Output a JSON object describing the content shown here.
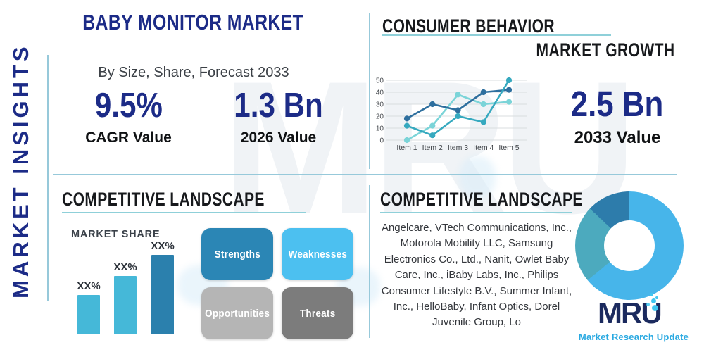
{
  "page": {
    "side_label": "MARKET INSIGHTS",
    "title": "BABY MONITOR MARKET",
    "subtitle": "By Size, Share, Forecast 2033",
    "watermark": "MRU"
  },
  "stats": {
    "cagr": {
      "value": "9.5%",
      "label": "CAGR Value"
    },
    "base_year": {
      "value": "1.3 Bn",
      "label": "2026 Value"
    },
    "forecast_year": {
      "value": "2.5 Bn",
      "label": "2033 Value"
    }
  },
  "sections": {
    "consumer_behavior": "CONSUMER BEHAVIOR",
    "market_growth": "MARKET GROWTH",
    "competitive_left": "COMPETITIVE LANDSCAPE",
    "competitive_right": "COMPETITIVE LANDSCAPE",
    "market_share": "MARKET SHARE"
  },
  "swot": [
    {
      "label": "Strengths",
      "color": "#2b86b5"
    },
    {
      "label": "Weaknesses",
      "color": "#4cc0f0"
    },
    {
      "label": "Opportunities",
      "color": "#b5b5b5"
    },
    {
      "label": "Threats",
      "color": "#7c7c7c"
    }
  ],
  "companies": "Angelcare, VTech Communications, Inc., Motorola Mobility LLC, Samsung Electronics Co., Ltd., Nanit, Owlet Baby Care, Inc., iBaby Labs, Inc., Philips Consumer Lifestyle B.V., Summer Infant, Inc., HelloBaby, Infant Optics, Dorel Juvenile Group, Lo",
  "logo": {
    "name": "MRU",
    "tagline": "Market Research Update"
  },
  "colors": {
    "navy": "#1c2b87",
    "heading": "#17191c",
    "divider": "#97c9da",
    "underline": "#8fd0d9",
    "logo_navy": "#1b2a5e",
    "logo_cyan": "#29a9e1"
  },
  "chart_data": [
    {
      "type": "line",
      "section": "CONSUMER BEHAVIOR",
      "categories": [
        "Item 1",
        "Item 2",
        "Item 3",
        "Item 4",
        "Item 5"
      ],
      "series": [
        {
          "name": "series-light-cyan",
          "color": "#7bd4d8",
          "values": [
            0,
            12,
            38,
            30,
            32
          ]
        },
        {
          "name": "series-dark-blue",
          "color": "#2e6f9e",
          "values": [
            18,
            30,
            25,
            40,
            42
          ]
        },
        {
          "name": "series-teal",
          "color": "#36a9bf",
          "values": [
            12,
            4,
            20,
            15,
            50
          ]
        }
      ],
      "yticks": [
        0,
        10,
        20,
        30,
        40,
        50
      ],
      "ylim": [
        0,
        50
      ],
      "grid": true,
      "legend": "none"
    },
    {
      "type": "bar",
      "title": "MARKET SHARE",
      "categories": [
        "XX%",
        "XX%",
        "XX%"
      ],
      "values": [
        45,
        66,
        90
      ],
      "ylim": [
        0,
        100
      ],
      "value_labels": [
        "XX%",
        "XX%",
        "XX%"
      ],
      "bar_colors": [
        "#45b8d8",
        "#45b8d8",
        "#2b80ad"
      ],
      "note": "bar heights estimated from pixels; values shown only as XX% placeholders"
    },
    {
      "type": "pie",
      "donut": true,
      "values": [
        64,
        23,
        13
      ],
      "colors": [
        "#47b5ea",
        "#4caabe",
        "#2d7cab"
      ],
      "start_angle_deg": 0
    }
  ]
}
